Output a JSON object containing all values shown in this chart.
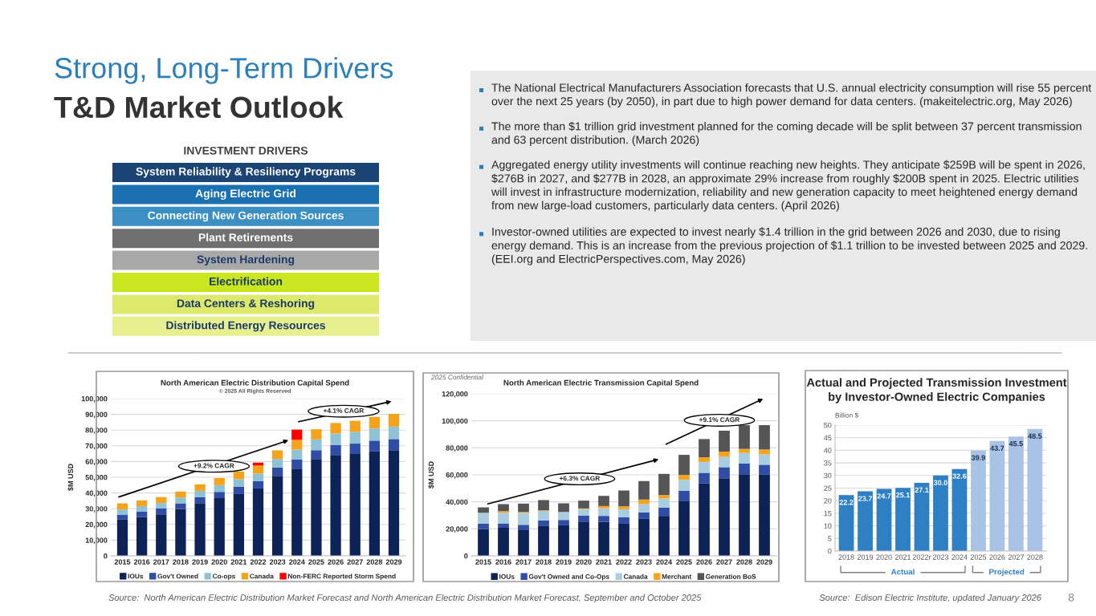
{
  "chart_data": [
    {
      "type": "other",
      "title": "Strong, Long-Term Drivers",
      "subtitle": "T&D Market Outlook",
      "annotations": [
        "8"
      ]
    },
    {
      "type": "other",
      "title": "INVESTMENT DRIVERS",
      "categories": [
        "System Reliability & Resiliency Programs",
        "Aging Electric Grid",
        "Connecting New Generation Sources",
        "Plant Retirements",
        "System Hardening",
        "Electrification",
        "Data Centers & Reshoring",
        "Distributed Energy Resources"
      ],
      "colors": [
        "#1b4374",
        "#1a70b0",
        "#3b8fc3",
        "#707070",
        "#a8a8a8",
        "#c9e61f",
        "#dce96b",
        "#e6f08f"
      ]
    },
    {
      "type": "other",
      "annotations": [
        "The National Electrical Manufacturers Association forecasts that U.S. annual electricity consumption will rise 55 percent over the next 25 years (by 2050), in part due to high power demand for data centers. (makeitelectric.org, May 2026)",
        "The more than $1 trillion grid investment planned for the coming decade will be split between 37 percent transmission and 63 percent distribution. (March 2026)",
        "Aggregated energy utility investments will continue reaching new heights. They anticipate $259B will be spent in 2026, $276B in 2027, and $277B in 2028, an approximate 29% increase from roughly $200B spent in 2025. Electric utilities will invest in infrastructure modernization, reliability and new generation capacity to meet heightened energy demand from new large-load customers, particularly data centers. (April 2026)",
        "Investor-owned utilities are expected to invest nearly $1.4 trillion in the grid between 2026 and 2030, due to rising energy demand. This is an increase from the previous projection of $1.1 trillion to be invested between 2025 and 2029. (EEI.org and ElectricPerspectives.com, May 2026)"
      ]
    },
    {
      "type": "bar",
      "stacked": true,
      "title": "North American Electric Distribution Capital Spend",
      "subtitle": "© 2025 All Rights Reserved",
      "ylabel": "$M USD",
      "categories": [
        "2015",
        "2016",
        "2017",
        "2018",
        "2019",
        "2020",
        "2021",
        "2022",
        "2023",
        "2024",
        "2025",
        "2026",
        "2027",
        "2028",
        "2029"
      ],
      "series": [
        {
          "name": "IOUs",
          "color": "#0d2257",
          "values": [
            23300,
            24700,
            26400,
            29800,
            33600,
            36700,
            39300,
            42900,
            50900,
            55500,
            61600,
            64100,
            64800,
            66400,
            67200
          ]
        },
        {
          "name": "Gov't Owned",
          "color": "#2f4da6",
          "values": [
            2700,
            3400,
            3800,
            3600,
            3800,
            4000,
            4700,
            4700,
            5300,
            5900,
            5600,
            6400,
            6600,
            6900,
            7100
          ]
        },
        {
          "name": "Co-ops",
          "color": "#8ec3d5",
          "values": [
            3500,
            3500,
            3400,
            3700,
            4000,
            4300,
            4800,
            4800,
            5400,
            6200,
            6900,
            7300,
            7400,
            7700,
            7900
          ]
        },
        {
          "name": "Canada",
          "color": "#f5a31a",
          "values": [
            3900,
            3700,
            3800,
            3800,
            4100,
            4500,
            4800,
            5000,
            5500,
            6200,
            6400,
            6700,
            7100,
            7400,
            8100
          ]
        },
        {
          "name": "Non-FERC Reported Storm Spend",
          "color": "#ff0000",
          "values": [
            null,
            null,
            null,
            null,
            null,
            null,
            null,
            1900,
            null,
            6500,
            null,
            null,
            null,
            null,
            null
          ]
        }
      ],
      "ylim": [
        0,
        100000
      ],
      "yticks": [
        0,
        {
          "value": 10000,
          "label": "10,000"
        },
        {
          "value": 20000,
          "label": "20,000"
        },
        {
          "value": 30000,
          "label": "30,000"
        },
        {
          "value": 40000,
          "label": "40,000"
        },
        {
          "value": 50000,
          "label": "50,000"
        },
        {
          "value": 60000,
          "label": "60,000"
        },
        {
          "value": 70000,
          "label": "70,000"
        },
        {
          "value": 80000,
          "label": "80,000"
        },
        {
          "value": 90000,
          "label": "90,000"
        },
        {
          "value": 100000,
          "label": "100,000"
        }
      ],
      "grid": "y",
      "legend": "bottom",
      "annotations": [
        "+9.2% CAGR",
        "+4.1% CAGR",
        "Source:  North American Electric Distribution Market Forecast and North American Electric Distribution Market Forecast, September and October 2025"
      ]
    },
    {
      "type": "bar",
      "stacked": true,
      "title": "North American Electric Transmission Capital Spend",
      "ylabel": "$M USD",
      "categories": [
        "2015",
        "2016",
        "2017",
        "2018",
        "2019",
        "2020",
        "2021",
        "2022",
        "2023",
        "2024",
        "2025",
        "2026",
        "2027",
        "2028",
        "2029"
      ],
      "series": [
        {
          "name": "IOUs",
          "color": "#0d2257",
          "values": [
            19800,
            20800,
            19000,
            22400,
            22600,
            25400,
            25200,
            24200,
            27400,
            29600,
            40900,
            53600,
            57500,
            60500,
            60100
          ]
        },
        {
          "name": "Gov't Owned and Co-Ops",
          "color": "#2f4da6",
          "values": [
            4000,
            3200,
            4000,
            3800,
            4000,
            4400,
            4400,
            4400,
            4700,
            6100,
            7300,
            7900,
            8200,
            7800,
            7400
          ]
        },
        {
          "name": "Canada",
          "color": "#a9cde0",
          "values": [
            8100,
            7900,
            8900,
            7100,
            5900,
            4900,
            5700,
            5900,
            6200,
            6800,
            8100,
            8100,
            7700,
            7900,
            7700
          ]
        },
        {
          "name": "Merchant",
          "color": "#f5a31a",
          "values": [
            0,
            1200,
            600,
            400,
            null,
            400,
            1600,
            2200,
            3400,
            2500,
            3600,
            3400,
            3800,
            3000,
            3600
          ]
        },
        {
          "name": "Generation BoS",
          "color": "#555555",
          "values": [
            4000,
            5200,
            6200,
            7600,
            6400,
            5800,
            7500,
            11700,
            13700,
            15700,
            14900,
            13500,
            15500,
            17600,
            18000
          ]
        }
      ],
      "ylim": [
        0,
        120000
      ],
      "yticks": [
        0,
        {
          "value": 20000,
          "label": "20,000"
        },
        {
          "value": 40000,
          "label": "40,000"
        },
        {
          "value": 60000,
          "label": "60,000"
        },
        {
          "value": 80000,
          "label": "80,000"
        },
        {
          "value": 100000,
          "label": "100,000"
        },
        {
          "value": 120000,
          "label": "120,000"
        }
      ],
      "grid": "y",
      "legend": "bottom",
      "annotations": [
        "+6.3% CAGR",
        "+9.1% CAGR",
        "2025 Confidential"
      ]
    },
    {
      "type": "bar",
      "title": "Actual and Projected Transmission Investment\nby Investor-Owned Electric Companies",
      "ylabel": "Billion $",
      "categories": [
        "2018",
        "2019",
        "2020",
        "2021",
        "2022r",
        "2023",
        "2024",
        "2025",
        "2026",
        "2027",
        "2028"
      ],
      "values": [
        22.2,
        23.7,
        24.7,
        25.1,
        27.1,
        30.0,
        32.6,
        39.9,
        43.7,
        45.5,
        48.5
      ],
      "value_labels": [
        "22.2",
        "23.7",
        "24.7",
        "25.1",
        "27.1",
        "30.0",
        "32.6",
        "39.9",
        "43.7",
        "45.5",
        "48.5"
      ],
      "colors": [
        "#2f7fc4",
        "#2f7fc4",
        "#2f7fc4",
        "#2f7fc4",
        "#2f7fc4",
        "#2f7fc4",
        "#2f7fc4",
        "#a8c3e6",
        "#a8c3e6",
        "#a8c3e6",
        "#a8c3e6"
      ],
      "ylim": [
        0,
        50
      ],
      "yticks": [
        0,
        5,
        10,
        15,
        20,
        25,
        30,
        35,
        40,
        45,
        50
      ],
      "grid": "y",
      "annotations": [
        "Actual",
        "Projected",
        "Source:  Edison Electric Institute, updated January 2026"
      ]
    }
  ]
}
